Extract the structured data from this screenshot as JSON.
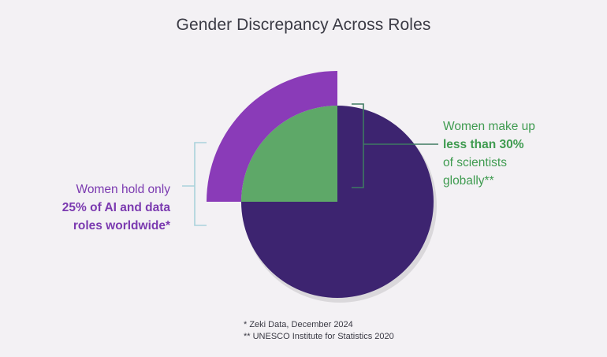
{
  "chart_data": {
    "type": "pie",
    "title": "Gender Discrepancy Across Roles",
    "center_slices": [
      {
        "label": "Women scientists globally",
        "value": 25,
        "color": "#5ea868"
      },
      {
        "label": "",
        "value": 75,
        "color": "#3d2470"
      }
    ],
    "outer_arc": {
      "label": "Women in AI and data roles worldwide",
      "value": 25,
      "color": "#8a3bb8"
    },
    "annotations": {
      "left": {
        "lines": [
          "Women hold only"
        ],
        "bold_lines": [
          "25% of AI and data",
          "roles worldwide*"
        ],
        "color": "#7b3ab0"
      },
      "right": {
        "lines_before": [
          "Women make up"
        ],
        "bold_lines": [
          "less than 30%"
        ],
        "lines_after": [
          "of scientists",
          "globally**"
        ],
        "color": "#3f9b50"
      }
    },
    "bracket_colors": {
      "left": "#a9d3db",
      "right": "#3f7a62"
    },
    "footnotes": [
      "* Zeki Data, December 2024",
      "** UNESCO Institute for Statistics 2020"
    ]
  }
}
